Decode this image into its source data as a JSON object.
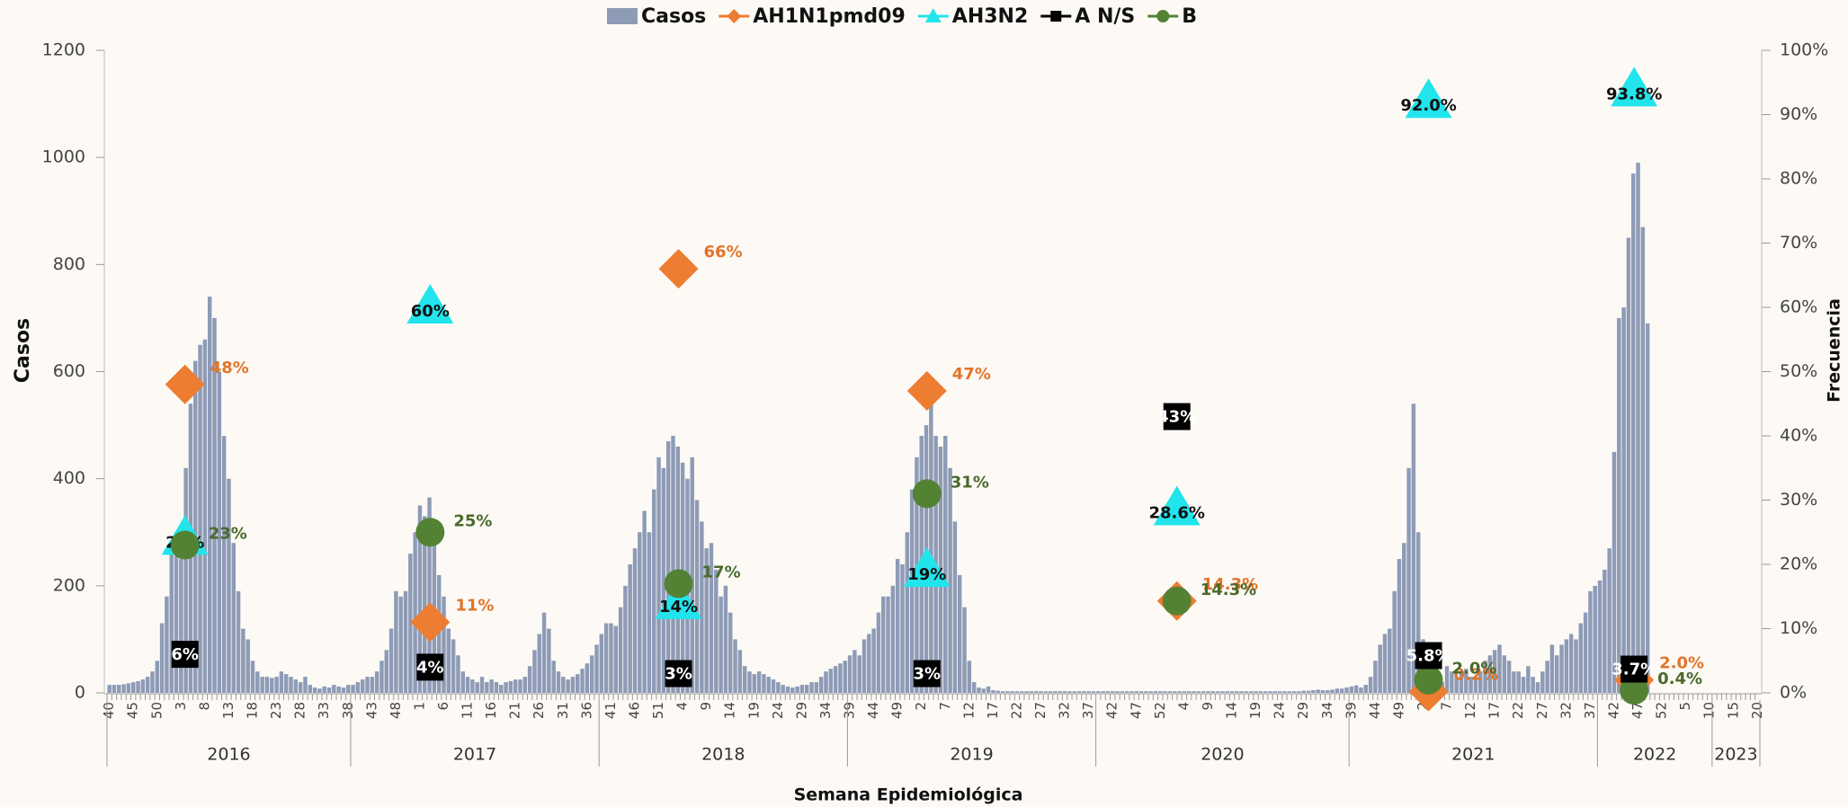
{
  "chart_data": {
    "type": "bar",
    "y_title": "Casos",
    "y2_title": "Frecuencia",
    "x_title": "Semana Epidemiológica",
    "ylim": [
      0,
      1200
    ],
    "yticks": [
      0,
      200,
      400,
      600,
      800,
      1000,
      1200
    ],
    "y2lim": [
      0,
      100
    ],
    "y2ticks": [
      {
        "value": 0,
        "label": "0%"
      },
      {
        "value": 10,
        "label": "10%"
      },
      {
        "value": 20,
        "label": "20%"
      },
      {
        "value": 30,
        "label": "30%"
      },
      {
        "value": 40,
        "label": "40%"
      },
      {
        "value": 50,
        "label": "50%"
      },
      {
        "value": 60,
        "label": "60%"
      },
      {
        "value": 70,
        "label": "70%"
      },
      {
        "value": 80,
        "label": "80%"
      },
      {
        "value": 90,
        "label": "90%"
      },
      {
        "value": 100,
        "label": "100%"
      }
    ],
    "legend": "top",
    "year_groups": [
      {
        "label": "2016",
        "start": 0,
        "end": 51
      },
      {
        "label": "2017",
        "start": 51,
        "end": 103
      },
      {
        "label": "2018",
        "start": 103,
        "end": 155
      },
      {
        "label": "2019",
        "start": 155,
        "end": 207
      },
      {
        "label": "2020",
        "start": 207,
        "end": 260
      },
      {
        "label": "2021",
        "start": 260,
        "end": 312
      },
      {
        "label": "2022",
        "start": 312,
        "end": 336
      },
      {
        "label": "2023",
        "start": 336,
        "end": 346
      }
    ],
    "categories": [
      "40",
      null,
      null,
      null,
      null,
      "45",
      null,
      null,
      null,
      null,
      "50",
      null,
      null,
      null,
      null,
      "3",
      null,
      null,
      null,
      null,
      "8",
      null,
      null,
      null,
      null,
      "13",
      null,
      null,
      null,
      null,
      "18",
      null,
      null,
      null,
      null,
      "23",
      null,
      null,
      null,
      null,
      "28",
      null,
      null,
      null,
      null,
      "33",
      null,
      null,
      null,
      null,
      "38",
      null,
      null,
      null,
      null,
      "43",
      null,
      null,
      null,
      null,
      "48",
      null,
      null,
      null,
      null,
      "1",
      null,
      null,
      null,
      null,
      "6",
      null,
      null,
      null,
      null,
      "11",
      null,
      null,
      null,
      null,
      "16",
      null,
      null,
      null,
      null,
      "21",
      null,
      null,
      null,
      null,
      "26",
      null,
      null,
      null,
      null,
      "31",
      null,
      null,
      null,
      null,
      "36",
      null,
      null,
      null,
      null,
      "41",
      null,
      null,
      null,
      null,
      "46",
      null,
      null,
      null,
      null,
      "51",
      null,
      null,
      null,
      null,
      "4",
      null,
      null,
      null,
      null,
      "9",
      null,
      null,
      null,
      null,
      "14",
      null,
      null,
      null,
      null,
      "19",
      null,
      null,
      null,
      null,
      "24",
      null,
      null,
      null,
      null,
      "29",
      null,
      null,
      null,
      null,
      "34",
      null,
      null,
      null,
      null,
      "39",
      null,
      null,
      null,
      null,
      "44",
      null,
      null,
      null,
      null,
      "49",
      null,
      null,
      null,
      null,
      "2",
      null,
      null,
      null,
      null,
      "7",
      null,
      null,
      null,
      null,
      "12",
      null,
      null,
      null,
      null,
      "17",
      null,
      null,
      null,
      null,
      "22",
      null,
      null,
      null,
      null,
      "27",
      null,
      null,
      null,
      null,
      "32",
      null,
      null,
      null,
      null,
      "37",
      null,
      null,
      null,
      null,
      "42",
      null,
      null,
      null,
      null,
      "47",
      null,
      null,
      null,
      null,
      "52",
      null,
      null,
      null,
      null,
      "4",
      null,
      null,
      null,
      null,
      "9",
      null,
      null,
      null,
      null,
      "14",
      null,
      null,
      null,
      null,
      "19",
      null,
      null,
      null,
      null,
      "24",
      null,
      null,
      null,
      null,
      "29",
      null,
      null,
      null,
      null,
      "34",
      null,
      null,
      null,
      null,
      "39",
      null,
      null,
      null,
      null,
      "44",
      null,
      null,
      null,
      null,
      "49",
      null,
      null,
      null,
      null,
      "2",
      null,
      null,
      null,
      null,
      "7",
      null,
      null,
      null,
      null,
      "12",
      null,
      null,
      null,
      null,
      "17",
      null,
      null,
      null,
      null,
      "22",
      null,
      null,
      null,
      null,
      "27",
      null,
      null,
      null,
      null,
      "32",
      null,
      null,
      null,
      null,
      "37",
      null,
      null,
      null,
      null,
      "42",
      null,
      null,
      null,
      null,
      "47",
      null,
      null,
      null,
      null,
      "52",
      null,
      null,
      null,
      null,
      "5",
      null,
      null,
      null,
      null,
      "10",
      null,
      null,
      null,
      null,
      "15",
      null,
      null,
      null,
      null,
      "20"
    ],
    "series": [
      {
        "name": "Casos",
        "type": "bar",
        "color": "#8e9bb6",
        "values": [
          15,
          15,
          15,
          16,
          18,
          20,
          22,
          25,
          30,
          40,
          60,
          130,
          180,
          270,
          300,
          250,
          420,
          540,
          620,
          650,
          660,
          740,
          700,
          600,
          480,
          400,
          280,
          190,
          120,
          100,
          60,
          40,
          30,
          30,
          28,
          30,
          40,
          35,
          30,
          25,
          20,
          30,
          15,
          10,
          8,
          12,
          10,
          15,
          12,
          10,
          15,
          15,
          20,
          25,
          30,
          30,
          40,
          60,
          80,
          120,
          190,
          180,
          190,
          260,
          300,
          350,
          330,
          365,
          300,
          220,
          180,
          120,
          100,
          70,
          40,
          30,
          25,
          20,
          30,
          20,
          25,
          20,
          15,
          20,
          22,
          25,
          25,
          30,
          50,
          80,
          110,
          150,
          120,
          60,
          40,
          30,
          25,
          30,
          35,
          45,
          55,
          70,
          90,
          110,
          130,
          130,
          125,
          160,
          200,
          240,
          270,
          300,
          340,
          300,
          380,
          440,
          420,
          470,
          480,
          460,
          430,
          400,
          440,
          360,
          320,
          270,
          280,
          230,
          180,
          200,
          150,
          100,
          80,
          50,
          40,
          35,
          40,
          35,
          30,
          25,
          20,
          15,
          12,
          10,
          12,
          15,
          15,
          20,
          20,
          30,
          40,
          45,
          50,
          55,
          60,
          70,
          80,
          70,
          100,
          110,
          120,
          150,
          180,
          180,
          200,
          250,
          240,
          300,
          380,
          440,
          480,
          500,
          540,
          480,
          460,
          480,
          420,
          320,
          220,
          160,
          60,
          20,
          10,
          8,
          12,
          5,
          4,
          3,
          3,
          3,
          3,
          3,
          3,
          3,
          3,
          3,
          3,
          3,
          3,
          3,
          3,
          3,
          3,
          3,
          3,
          3,
          3,
          3,
          3,
          3,
          3,
          3,
          3,
          3,
          3,
          3,
          3,
          3,
          3,
          3,
          3,
          3,
          3,
          3,
          3,
          3,
          3,
          3,
          3,
          3,
          3,
          3,
          3,
          3,
          3,
          3,
          3,
          3,
          3,
          3,
          3,
          3,
          3,
          3,
          3,
          3,
          3,
          3,
          3,
          3,
          4,
          4,
          5,
          6,
          5,
          5,
          6,
          8,
          8,
          10,
          12,
          14,
          10,
          15,
          30,
          60,
          90,
          110,
          120,
          190,
          250,
          280,
          420,
          540,
          300,
          100,
          50,
          20,
          15,
          20,
          50,
          40,
          30,
          40,
          45,
          30,
          30,
          40,
          60,
          70,
          80,
          90,
          70,
          60,
          40,
          40,
          30,
          50,
          30,
          20,
          40,
          60,
          90,
          70,
          90,
          100,
          110,
          100,
          130,
          150,
          190,
          200,
          210,
          230,
          270,
          450,
          700,
          720,
          850,
          970,
          990,
          870,
          690,
          0,
          0,
          0,
          0,
          0,
          0,
          0,
          0,
          0,
          0,
          0,
          0,
          0,
          0,
          0,
          0,
          0,
          0,
          0,
          0,
          0,
          0,
          0
        ]
      },
      {
        "name": "AH1N1pmd09",
        "type": "scatter",
        "axis": "y2",
        "marker": "diamond",
        "color": "#ed7d31",
        "label_color": "#e2742a",
        "values": [
          48,
          11,
          66,
          47,
          14.3,
          0.2,
          2.0
        ],
        "value_labels": [
          "48%",
          "11%",
          "66%",
          "47%",
          "14.3%",
          "0.2%",
          "2.0%"
        ]
      },
      {
        "name": "AH3N2",
        "type": "scatter",
        "axis": "y2",
        "marker": "triangle",
        "color": "#22e4ec",
        "label_color": "#111111",
        "values": [
          24,
          60,
          14,
          19,
          28.6,
          92.0,
          93.8
        ],
        "value_labels": [
          "24%",
          "60%",
          "14%",
          "19%",
          "28.6%",
          "92.0%",
          "93.8%"
        ]
      },
      {
        "name": "A N/S",
        "type": "scatter",
        "axis": "y2",
        "marker": "square",
        "color": "#000000",
        "label_color": "#ffffff",
        "values": [
          6,
          4,
          3,
          3,
          43,
          5.8,
          3.7
        ],
        "value_labels": [
          "6%",
          "4%",
          "3%",
          "3%",
          "43%",
          "5.8%",
          "3.7%"
        ]
      },
      {
        "name": "B",
        "type": "scatter",
        "axis": "y2",
        "marker": "circle",
        "color": "#548235",
        "label_color": "#4a6a2c",
        "values": [
          23,
          25,
          17,
          31,
          14.3,
          2.0,
          0.4
        ],
        "value_labels": [
          "23%",
          "25%",
          "17%",
          "31%",
          "14.3%",
          "2.0%",
          "0.4%"
        ]
      }
    ]
  }
}
